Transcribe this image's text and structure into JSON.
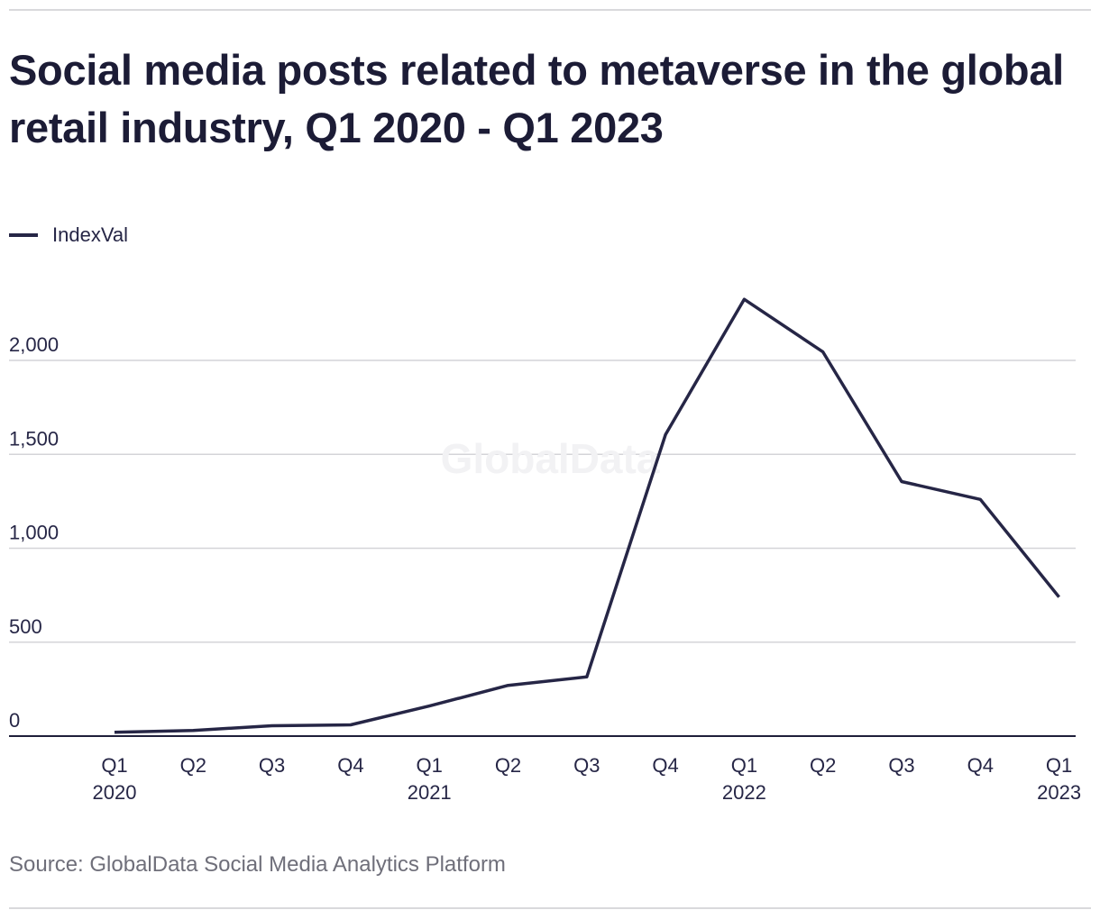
{
  "header": {
    "title": "Social media posts related to metaverse in the global retail industry, Q1 2020 - Q1 2023"
  },
  "legend": {
    "label": "IndexVal"
  },
  "footer": {
    "source": "Source: GlobalData Social Media Analytics Platform"
  },
  "colors": {
    "line": "#262646",
    "grid": "#d4d4d8",
    "axis": "#1f1f3a",
    "text": "#262646",
    "watermark": "#f2f2f4"
  },
  "watermark": "GlobalData",
  "chart_data": {
    "type": "line",
    "title": "Social media posts related to metaverse in the global retail industry, Q1 2020 - Q1 2023",
    "xlabel": "",
    "ylabel": "",
    "categories": [
      {
        "quarter": "Q1",
        "year": "2020"
      },
      {
        "quarter": "Q2",
        "year": ""
      },
      {
        "quarter": "Q3",
        "year": ""
      },
      {
        "quarter": "Q4",
        "year": ""
      },
      {
        "quarter": "Q1",
        "year": "2021"
      },
      {
        "quarter": "Q2",
        "year": ""
      },
      {
        "quarter": "Q3",
        "year": ""
      },
      {
        "quarter": "Q4",
        "year": ""
      },
      {
        "quarter": "Q1",
        "year": "2022"
      },
      {
        "quarter": "Q2",
        "year": ""
      },
      {
        "quarter": "Q3",
        "year": ""
      },
      {
        "quarter": "Q4",
        "year": ""
      },
      {
        "quarter": "Q1",
        "year": "2023"
      }
    ],
    "series": [
      {
        "name": "IndexVal",
        "values": [
          20,
          30,
          55,
          60,
          160,
          270,
          315,
          1605,
          2325,
          2045,
          1355,
          1260,
          740
        ]
      }
    ],
    "yticks": [
      {
        "value": 0,
        "label": "0"
      },
      {
        "value": 500,
        "label": "500"
      },
      {
        "value": 1000,
        "label": "1,000"
      },
      {
        "value": 1500,
        "label": "1,500"
      },
      {
        "value": 2000,
        "label": "2,000"
      }
    ],
    "ylim": [
      0,
      2450
    ],
    "grid": true,
    "legend_position": "top-left"
  }
}
